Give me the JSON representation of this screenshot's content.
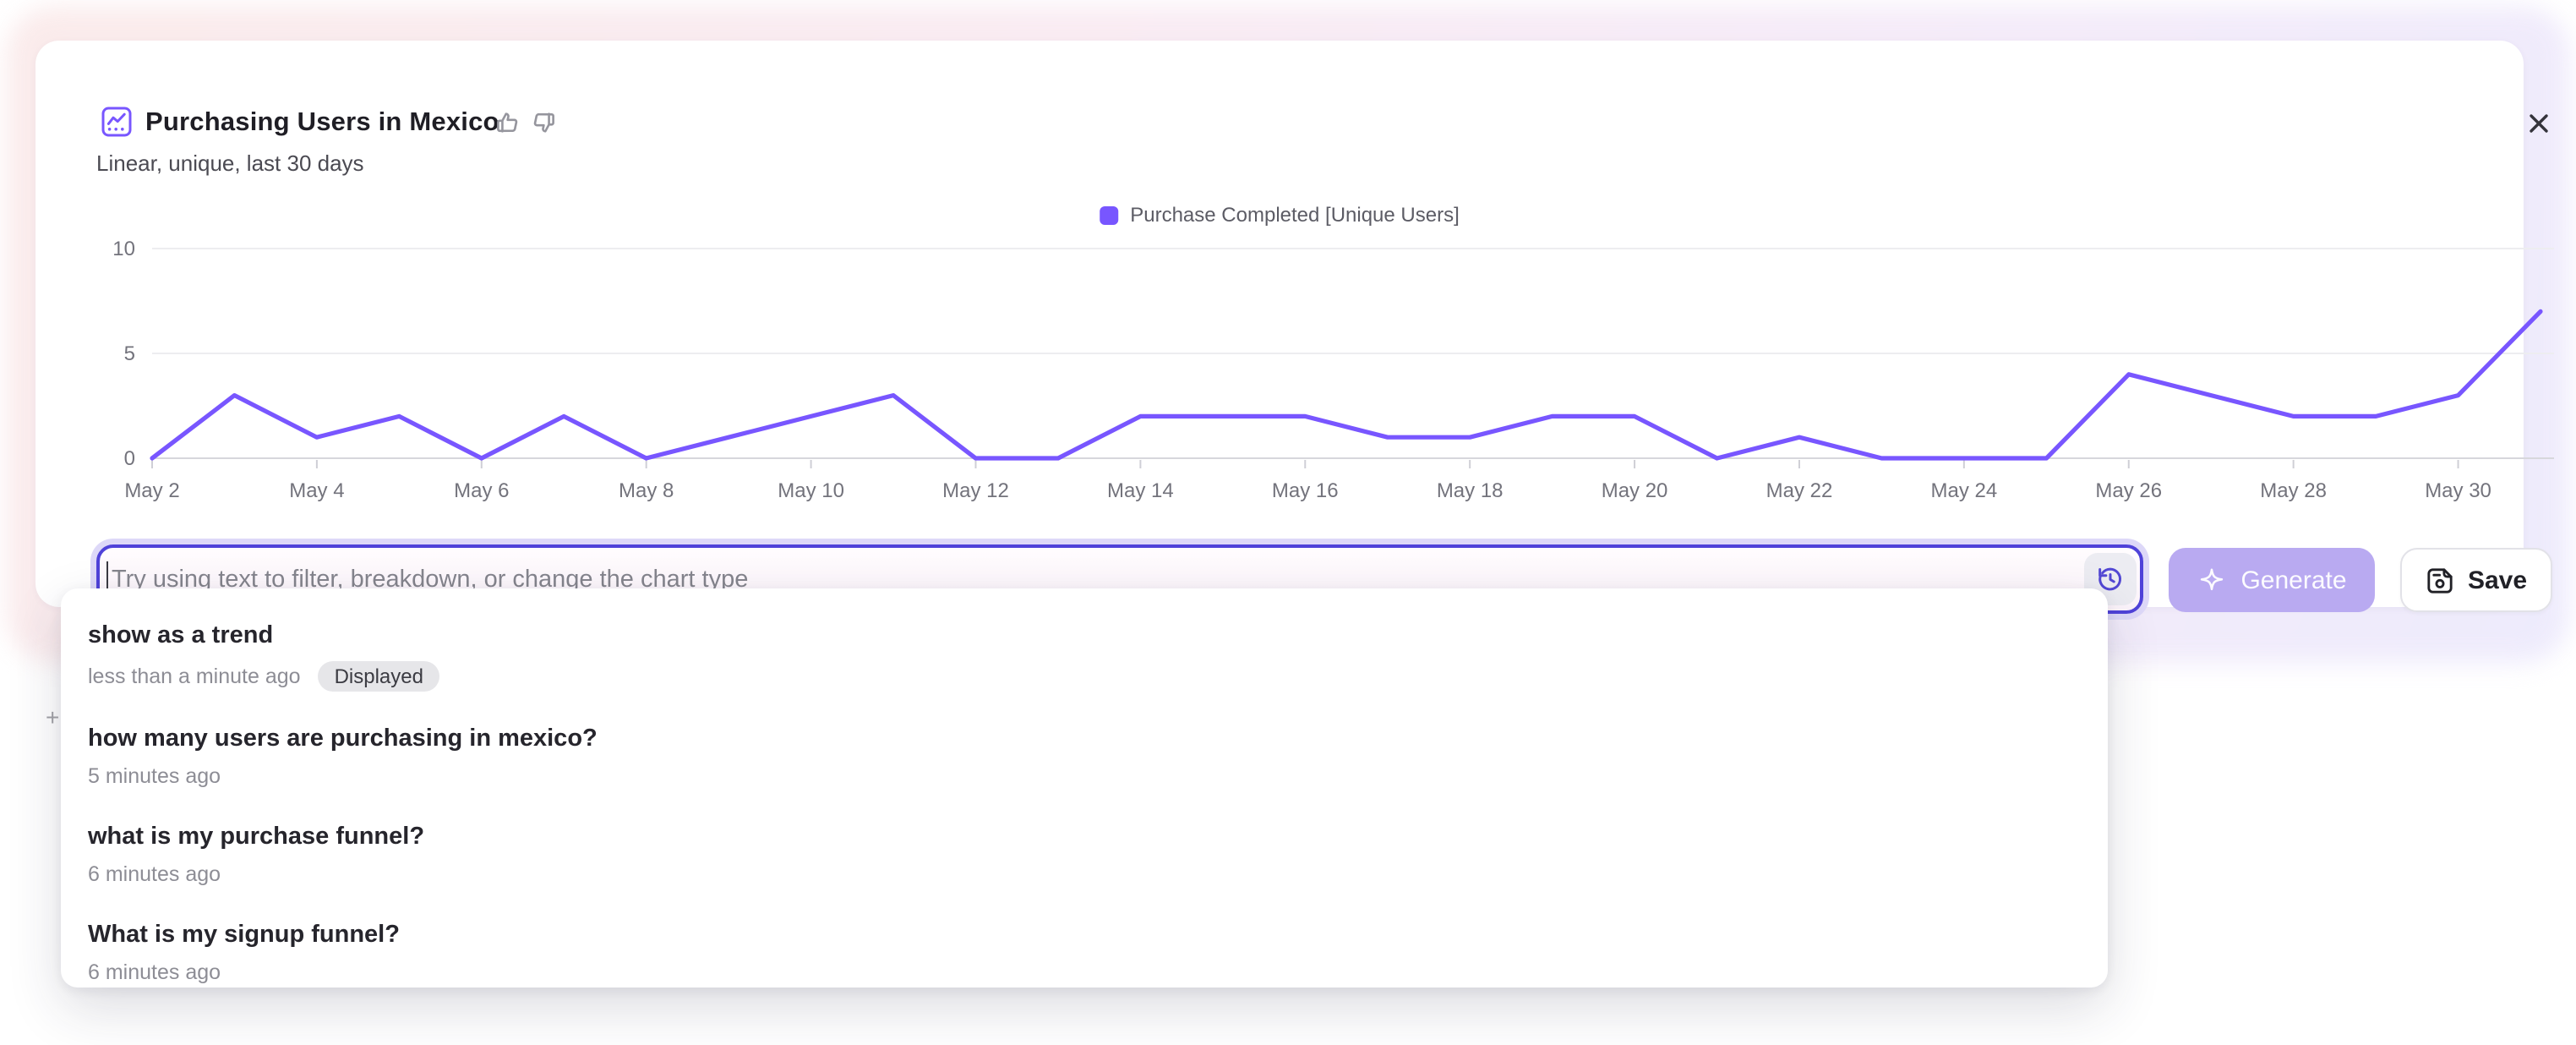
{
  "card": {
    "title": "Purchasing Users in Mexico",
    "subtitle": "Linear, unique, last 30 days"
  },
  "colors": {
    "accent_purple": "#7856ff",
    "input_border": "#4f42d9",
    "generate_bg": "#b9aaf1"
  },
  "chart_data": {
    "type": "line",
    "title": "Purchasing Users in Mexico",
    "x": [
      "May 2",
      "May 3",
      "May 4",
      "May 5",
      "May 6",
      "May 7",
      "May 8",
      "May 9",
      "May 10",
      "May 11",
      "May 12",
      "May 13",
      "May 14",
      "May 15",
      "May 16",
      "May 17",
      "May 18",
      "May 19",
      "May 20",
      "May 21",
      "May 22",
      "May 23",
      "May 24",
      "May 25",
      "May 26",
      "May 27",
      "May 28",
      "May 29",
      "May 30",
      "May 31"
    ],
    "x_tick_step": 2,
    "series": [
      {
        "name": "Purchase Completed [Unique Users]",
        "color": "#7856ff",
        "values": [
          0,
          3,
          1,
          2,
          0,
          2,
          0,
          1,
          2,
          3,
          0,
          0,
          2,
          2,
          2,
          1,
          1,
          2,
          2,
          0,
          1,
          0,
          0,
          0,
          4,
          3,
          2,
          2,
          3,
          7
        ]
      }
    ],
    "ylim": [
      0,
      10
    ],
    "yticks": [
      0,
      5,
      10
    ],
    "grid": true,
    "legend_position": "top-center"
  },
  "query_bar": {
    "placeholder": "Try using text to filter, breakdown, or change the chart type",
    "generate_label": "Generate",
    "save_label": "Save"
  },
  "history_dropdown": {
    "items": [
      {
        "query": "show as a trend",
        "time": "less than a minute ago",
        "badge": "Displayed"
      },
      {
        "query": "how many users are purchasing in mexico?",
        "time": "5 minutes ago",
        "badge": ""
      },
      {
        "query": "what is my purchase funnel?",
        "time": "6 minutes ago",
        "badge": ""
      },
      {
        "query": "What is my signup funnel?",
        "time": "6 minutes ago",
        "badge": ""
      }
    ]
  }
}
